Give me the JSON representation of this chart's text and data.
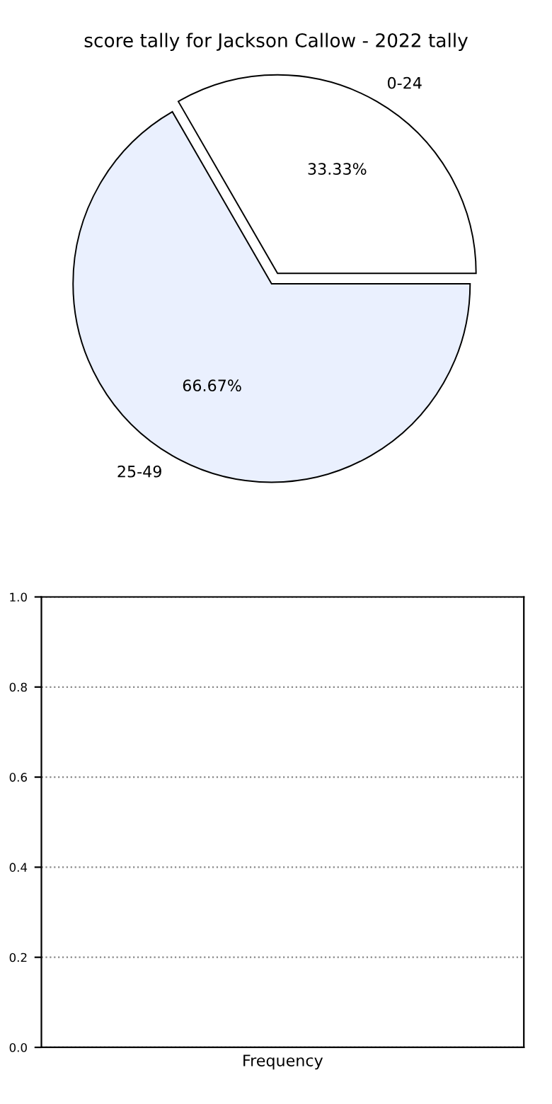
{
  "chart_data": [
    {
      "type": "pie",
      "title": "score tally for Jackson Callow - 2022 tally",
      "categories": [
        "0-24",
        "25-49"
      ],
      "values": [
        33.33,
        66.67
      ],
      "colors": [
        "#ffffff",
        "#eaf0fe"
      ],
      "value_labels": [
        "33.33%",
        "66.67%"
      ]
    },
    {
      "type": "bar",
      "categories": [
        "Frequency"
      ],
      "values": [
        null
      ],
      "ylim": [
        0,
        1
      ],
      "yticks": [
        {
          "value": 0,
          "label": "0.0"
        },
        {
          "value": 0.2,
          "label": "0.2"
        },
        {
          "value": 0.4,
          "label": "0.4"
        },
        {
          "value": 0.6,
          "label": "0.6"
        },
        {
          "value": 0.8,
          "label": "0.8"
        },
        {
          "value": 1,
          "label": "1.0"
        }
      ],
      "grid": "y"
    }
  ]
}
